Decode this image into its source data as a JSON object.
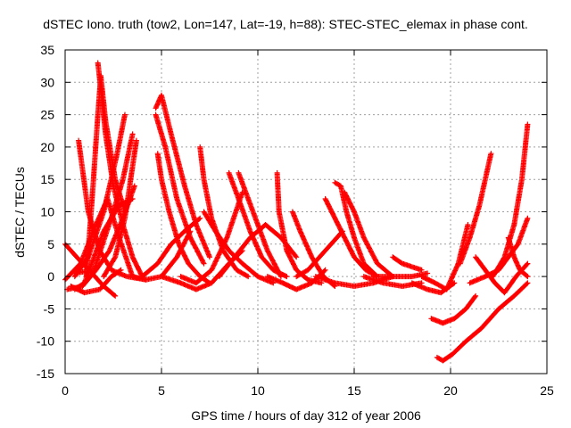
{
  "chart_data": {
    "type": "scatter",
    "title": "dSTEC Iono. truth (tow2, Lon=147, Lat=-19, h=88): STEC-STEC_elemax in phase cont.",
    "xlabel": "GPS time / hours of day 312 of year 2006",
    "ylabel": "dSTEC  / TECUs",
    "xlim": [
      0,
      25
    ],
    "ylim": [
      -15,
      35
    ],
    "xticks": [
      0,
      5,
      10,
      15,
      20,
      25
    ],
    "yticks": [
      -15,
      -10,
      -5,
      0,
      5,
      10,
      15,
      20,
      25,
      30,
      35
    ],
    "grid": true,
    "marker": "+",
    "color": "#ff0000",
    "series": [
      {
        "x": [
          0.0,
          0.8,
          1.6,
          2.2,
          2.8,
          3.5
        ],
        "y": [
          -0.5,
          2,
          8,
          12,
          6,
          0
        ]
      },
      {
        "x": [
          0.0,
          0.6,
          1.4,
          2.0,
          2.6
        ],
        "y": [
          5,
          3,
          0.5,
          -1.5,
          -3
        ]
      },
      {
        "x": [
          0.1,
          0.9,
          1.6,
          2.3,
          3.0,
          3.6
        ],
        "y": [
          -2,
          -1.5,
          1,
          4,
          9,
          14
        ]
      },
      {
        "x": [
          0.3,
          1.0,
          1.8,
          2.4,
          2.9
        ],
        "y": [
          -1.5,
          -2.5,
          -2,
          0,
          1
        ]
      },
      {
        "x": [
          0.5,
          1.0,
          1.5,
          2.0,
          2.8,
          3.5
        ],
        "y": [
          -2,
          -1,
          3,
          7,
          11,
          12
        ]
      },
      {
        "x": [
          0.7,
          1.2,
          1.8,
          2.4,
          3.2,
          4.2
        ],
        "y": [
          21,
          10,
          4,
          1,
          0,
          -0.5
        ]
      },
      {
        "x": [
          1.7,
          1.85,
          2.1,
          2.5,
          3.0,
          3.5,
          4.0
        ],
        "y": [
          33,
          29,
          22,
          14,
          8,
          3,
          0
        ]
      },
      {
        "x": [
          1.1,
          1.4,
          1.7,
          1.85,
          2.1,
          2.6,
          3.1
        ],
        "y": [
          0,
          12,
          25,
          31,
          24,
          15,
          10
        ]
      },
      {
        "x": [
          0.5,
          1.2,
          2.0,
          2.7,
          3.1
        ],
        "y": [
          0,
          3,
          10,
          19,
          25
        ]
      },
      {
        "x": [
          0.5,
          1.5,
          2.5,
          3.0,
          3.5
        ],
        "y": [
          0.5,
          1,
          10,
          15,
          22
        ]
      },
      {
        "x": [
          2.0,
          2.6,
          3.1,
          3.7
        ],
        "y": [
          0,
          3,
          9,
          21
        ]
      },
      {
        "x": [
          3.5,
          4.2,
          5.0,
          5.8,
          6.5
        ],
        "y": [
          0,
          -0.5,
          0,
          3,
          7
        ]
      },
      {
        "x": [
          4.8,
          5.0,
          5.4,
          5.9,
          6.4,
          7.0,
          7.5
        ],
        "y": [
          19,
          15,
          10,
          5,
          2,
          0,
          -1
        ]
      },
      {
        "x": [
          4.7,
          5.2,
          5.8,
          6.5,
          7.2
        ],
        "y": [
          25,
          20,
          12,
          6,
          2
        ]
      },
      {
        "x": [
          4.7,
          5.0,
          5.5,
          6.2,
          6.8,
          7.5
        ],
        "y": [
          26,
          28,
          22,
          14,
          8,
          3
        ]
      },
      {
        "x": [
          4.0,
          4.8,
          5.5,
          6.2,
          7.0
        ],
        "y": [
          0,
          2,
          5,
          7,
          9
        ]
      },
      {
        "x": [
          5.0,
          6.0,
          6.8,
          7.6,
          8.5,
          9.2
        ],
        "y": [
          0,
          -1,
          -2,
          -1,
          2,
          4
        ]
      },
      {
        "x": [
          7.0,
          7.2,
          7.6,
          8.2,
          8.9,
          9.5
        ],
        "y": [
          20,
          15,
          9,
          4,
          1,
          0
        ]
      },
      {
        "x": [
          7.2,
          7.8,
          8.5,
          9.2,
          10.0,
          10.8
        ],
        "y": [
          10,
          7,
          4,
          2,
          0,
          -1
        ]
      },
      {
        "x": [
          6.0,
          6.8,
          7.6,
          8.4,
          9.2
        ],
        "y": [
          0,
          -1,
          1,
          6,
          13
        ]
      },
      {
        "x": [
          8.5,
          9.0,
          9.6,
          10.2,
          10.8,
          11.5
        ],
        "y": [
          16,
          12,
          7,
          3,
          1,
          0
        ]
      },
      {
        "x": [
          9.0,
          9.5,
          10.0,
          10.5,
          11.2
        ],
        "y": [
          16,
          12,
          8,
          4,
          0
        ]
      },
      {
        "x": [
          8.0,
          8.8,
          9.6,
          10.4,
          11.2,
          12.0
        ],
        "y": [
          0,
          3,
          6,
          8,
          6,
          3
        ]
      },
      {
        "x": [
          11.0,
          11.1,
          11.5,
          12.0,
          12.6,
          13.3
        ],
        "y": [
          16,
          10,
          4,
          1,
          -0.5,
          -1
        ]
      },
      {
        "x": [
          10.5,
          11.3,
          12.0,
          12.8,
          13.5
        ],
        "y": [
          0,
          -1,
          -2,
          -1,
          1
        ]
      },
      {
        "x": [
          11.8,
          12.2,
          12.8,
          13.4,
          14.0
        ],
        "y": [
          10,
          7,
          3,
          0,
          -1.5
        ]
      },
      {
        "x": [
          12.0,
          12.6,
          13.2,
          13.8,
          14.4
        ],
        "y": [
          0,
          1,
          3,
          5,
          7
        ]
      },
      {
        "x": [
          13.5,
          14.0,
          14.5,
          15.0,
          15.6,
          16.2
        ],
        "y": [
          12,
          9,
          6,
          3,
          1,
          0
        ]
      },
      {
        "x": [
          14.0,
          14.3,
          14.6,
          15.0,
          15.5,
          16.2
        ],
        "y": [
          14.5,
          14,
          10,
          6,
          2,
          0
        ]
      },
      {
        "x": [
          14.5,
          15.0,
          15.5,
          16.2,
          17.0
        ],
        "y": [
          13,
          10,
          6,
          2,
          0
        ]
      },
      {
        "x": [
          13.0,
          14.0,
          15.0,
          16.0,
          17.0
        ],
        "y": [
          0,
          -1,
          -1.5,
          -1,
          0
        ]
      },
      {
        "x": [
          15.5,
          16.5,
          17.5,
          18.5
        ],
        "y": [
          0,
          -1,
          -1.5,
          -1
        ]
      },
      {
        "x": [
          17.0,
          17.5,
          18.0,
          18.5
        ],
        "y": [
          3,
          2,
          1.5,
          1
        ]
      },
      {
        "x": [
          16.0,
          17.0,
          18.0,
          18.8
        ],
        "y": [
          0,
          0,
          0,
          0.5
        ]
      },
      {
        "x": [
          18.5,
          19.2,
          19.8,
          20.4,
          20.9
        ],
        "y": [
          0,
          -1,
          -2,
          2,
          8
        ]
      },
      {
        "x": [
          18.0,
          18.8,
          19.5,
          20.2
        ],
        "y": [
          -1,
          -2,
          -2.5,
          -1
        ]
      },
      {
        "x": [
          19.0,
          19.6,
          20.2,
          20.8,
          21.3
        ],
        "y": [
          -6.5,
          -7.2,
          -6.5,
          -5,
          -3
        ]
      },
      {
        "x": [
          19.3,
          19.6,
          20.1,
          20.8,
          21.6,
          22.5,
          23.3,
          24.0
        ],
        "y": [
          -12.5,
          -13,
          -12,
          -10,
          -8,
          -5,
          -3,
          -1
        ]
      },
      {
        "x": [
          20.5,
          21.0,
          21.5,
          22.1
        ],
        "y": [
          2,
          6,
          11,
          19
        ]
      },
      {
        "x": [
          21.0,
          21.8,
          22.5,
          23.0,
          23.5,
          24.0
        ],
        "y": [
          -1,
          0,
          1,
          3,
          5,
          9
        ]
      },
      {
        "x": [
          21.3,
          21.8,
          22.3,
          22.8,
          23.4,
          24.0
        ],
        "y": [
          3,
          1,
          -1,
          -2.5,
          0,
          2
        ]
      },
      {
        "x": [
          22.2,
          22.8,
          23.3,
          23.7,
          24.0
        ],
        "y": [
          0,
          3,
          8,
          15,
          23.5
        ]
      },
      {
        "x": [
          23.0,
          23.3,
          23.6,
          24.0
        ],
        "y": [
          6,
          3,
          1,
          0
        ]
      }
    ]
  }
}
